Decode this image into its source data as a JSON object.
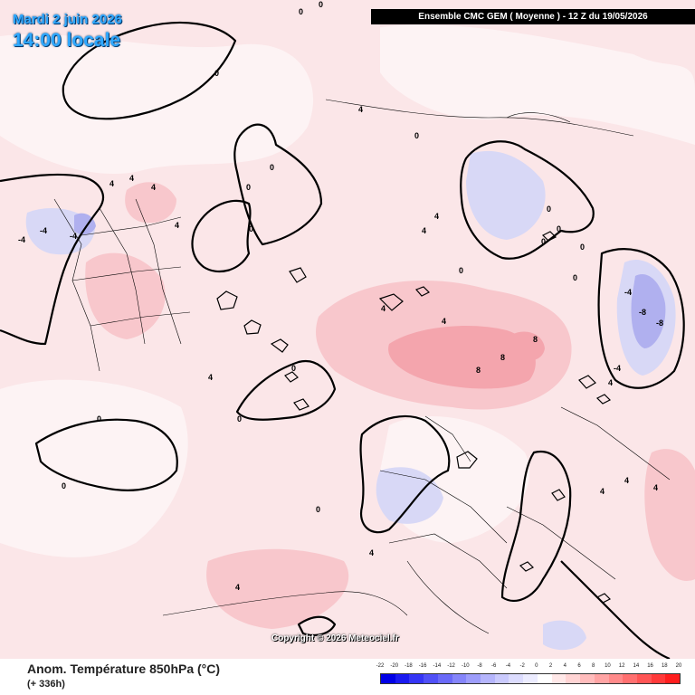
{
  "header": {
    "date_line": "Mardi 2 juin 2026",
    "time_line": "14:00 locale",
    "run_banner": "Ensemble CMC GEM  ( Moyenne )  -  12 Z du 19/05/2026"
  },
  "watermark": "Copyright © 2026 Meteociel.fr",
  "footer": {
    "variable": "Anom. Température 850hPa (°C)",
    "lead": "(+ 336h)"
  },
  "legend": {
    "labels": [
      "-22",
      "-20",
      "-18",
      "-16",
      "-14",
      "-12",
      "-10",
      "-8",
      "-6",
      "-4",
      "-2",
      "0",
      "2",
      "4",
      "6",
      "8",
      "10",
      "12",
      "14",
      "16",
      "18",
      "20"
    ],
    "colors": [
      "#0000e6",
      "#1a1af0",
      "#3535f5",
      "#5050f7",
      "#6a6af8",
      "#8585fa",
      "#9d9dfb",
      "#b5b5fc",
      "#cacafd",
      "#dcdcfe",
      "#ececff",
      "#ffffff",
      "#ffe8e8",
      "#ffd4d4",
      "#ffbcbc",
      "#ffa4a4",
      "#ff8a8a",
      "#ff7070",
      "#ff5555",
      "#ff3a3a",
      "#ff1e1e"
    ]
  },
  "contour_labels": [
    {
      "text": "0"
    },
    {
      "text": "0"
    },
    {
      "text": "0"
    },
    {
      "text": "0"
    },
    {
      "text": "0"
    },
    {
      "text": "0"
    },
    {
      "text": "0"
    },
    {
      "text": "0"
    },
    {
      "text": "0"
    },
    {
      "text": "0"
    },
    {
      "text": "0"
    },
    {
      "text": "0"
    },
    {
      "text": "0"
    },
    {
      "text": "0"
    },
    {
      "text": "0"
    },
    {
      "text": "0"
    },
    {
      "text": "0"
    },
    {
      "text": "0"
    },
    {
      "text": "4"
    },
    {
      "text": "4"
    },
    {
      "text": "4"
    },
    {
      "text": "4"
    },
    {
      "text": "4"
    },
    {
      "text": "4"
    },
    {
      "text": "4"
    },
    {
      "text": "4"
    },
    {
      "text": "4"
    },
    {
      "text": "4"
    },
    {
      "text": "4"
    },
    {
      "text": "4"
    },
    {
      "text": "4"
    },
    {
      "text": "4"
    },
    {
      "text": "4"
    },
    {
      "text": "4"
    },
    {
      "text": "8"
    },
    {
      "text": "8"
    },
    {
      "text": "8"
    },
    {
      "text": "-4"
    },
    {
      "text": "-4"
    },
    {
      "text": "-4"
    },
    {
      "text": "-4"
    },
    {
      "text": "-4"
    },
    {
      "text": "-8"
    },
    {
      "text": "-8"
    }
  ]
}
